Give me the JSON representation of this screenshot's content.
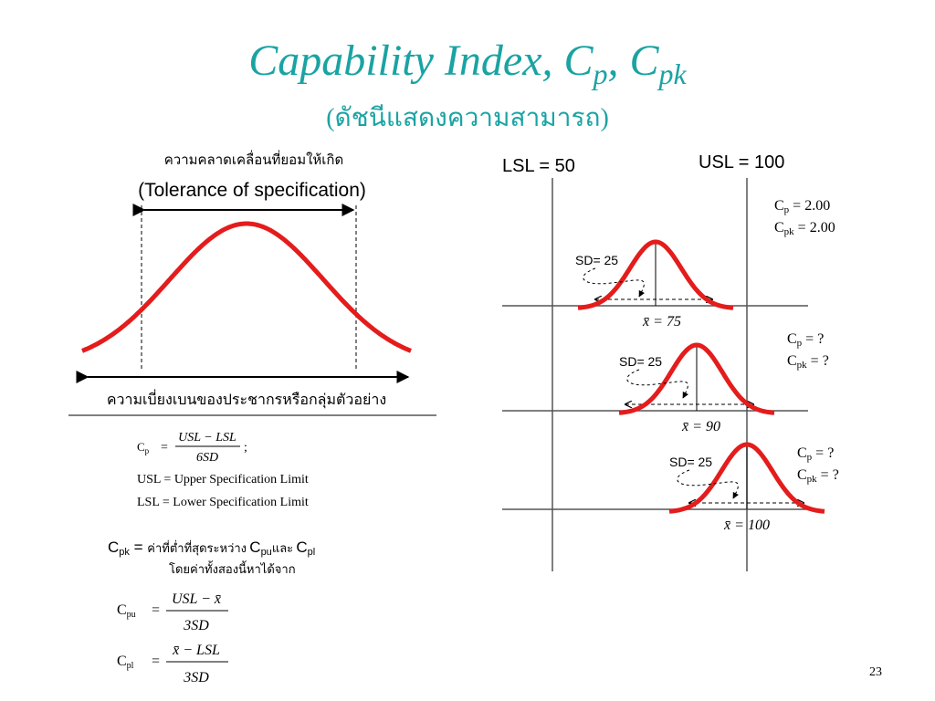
{
  "title": {
    "text": "Capability Index, C",
    "sub_p": "p",
    "comma": ", C",
    "sub_pk": "pk"
  },
  "subtitle": "(ดัชนีแสดงความสามารถ)",
  "left": {
    "tolerance_thai": "ความคลาดเคลื่อนที่ยอมให้เกิด",
    "tolerance": "(Tolerance of specification)",
    "deviation": "ความเบี่ยงเบนของประชากรหรือกลุ่มตัวอย่าง"
  },
  "formulas": {
    "cp": {
      "symbol": "C",
      "sub": "p",
      "eq": "=",
      "numerator": "USL − LSL",
      "denominator": "6SD",
      "end": ";"
    },
    "usl_def": "USL = Upper Specification Limit",
    "lsl_def": "LSL = Lower Specification Limit",
    "cpk": {
      "symbol": "C",
      "sub": "pk",
      "eq": " = ",
      "text": "ค่าที่ต่ำที่สุดระหว่าง ",
      "cpu_symbol": "C",
      "cpu_sub": "pu",
      "and": "และ ",
      "cpl_symbol": "C",
      "cpl_sub": "pl",
      "note": "โดยค่าทั้งสองนี้หาได้จาก"
    },
    "cpu": {
      "symbol": "C",
      "sub": "pu",
      "eq": "=",
      "numerator": "USL − x̄",
      "denominator": "3SD"
    },
    "cpl": {
      "symbol": "C",
      "sub": "pl",
      "eq": "=",
      "numerator": "x̄ − LSL",
      "denominator": "3SD"
    }
  },
  "right": {
    "lsl": "LSL = 50",
    "usl": "USL = 100",
    "cases": [
      {
        "sd": "SD= 25",
        "mean": "x̄ = 75",
        "cp": {
          "symbol": "C",
          "sub": "p",
          "value": " = 2.00"
        },
        "cpk": {
          "symbol": "C",
          "sub": "pk",
          "value": " = 2.00"
        }
      },
      {
        "sd": "SD= 25",
        "mean": "x̄ = 90",
        "cp": {
          "symbol": "C",
          "sub": "p",
          "value": " = ?"
        },
        "cpk": {
          "symbol": "C",
          "sub": "pk",
          "value": " = ?"
        }
      },
      {
        "sd": "SD= 25",
        "mean": "x̄ = 100",
        "cp": {
          "symbol": "C",
          "sub": "p",
          "value": " = ?"
        },
        "cpk": {
          "symbol": "C",
          "sub": "pk",
          "value": " = ?"
        }
      }
    ]
  },
  "page_number": "23"
}
